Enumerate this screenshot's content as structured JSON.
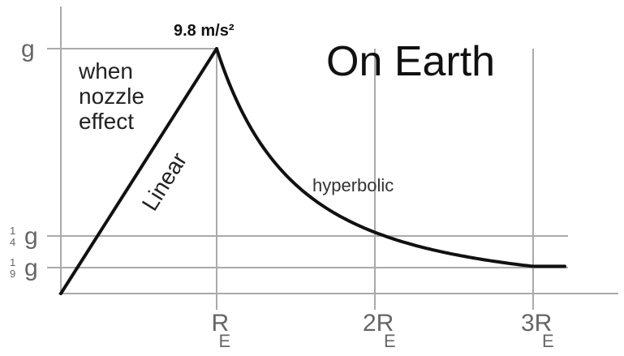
{
  "chart_data": {
    "type": "line",
    "title": "On Earth",
    "xlabel": "",
    "ylabel": "",
    "x_ticks": [
      {
        "value": 1,
        "label": "R",
        "sub": "E"
      },
      {
        "value": 2,
        "label": "2R",
        "sub": "E"
      },
      {
        "value": 3,
        "label": "3R",
        "sub": "E"
      }
    ],
    "y_ticks": [
      {
        "value": 1,
        "label": "g"
      },
      {
        "value": 0.25,
        "label": "g",
        "frac_num": "1",
        "frac_den": "4"
      },
      {
        "value": 0.1111,
        "label": "g",
        "frac_num": "1",
        "frac_den": "9"
      }
    ],
    "xlim": [
      0,
      3.5
    ],
    "ylim": [
      0,
      1
    ],
    "grid": true,
    "series": [
      {
        "segment": "linear",
        "x": [
          0,
          1
        ],
        "y": [
          0,
          1
        ]
      },
      {
        "segment": "hyperbolic",
        "formula": "g/x^2",
        "x_range": [
          1,
          3.2
        ]
      }
    ],
    "annotations": {
      "peak_value": "9.8 m/s²",
      "nozzle_note": [
        "when",
        "nozzle",
        "effect"
      ],
      "linear_label": "Linear",
      "hyperbolic_label": "hyperbolic"
    },
    "colors": {
      "curve": "#111111",
      "grid": "#aaaaaa",
      "ticks": "#666666"
    }
  }
}
